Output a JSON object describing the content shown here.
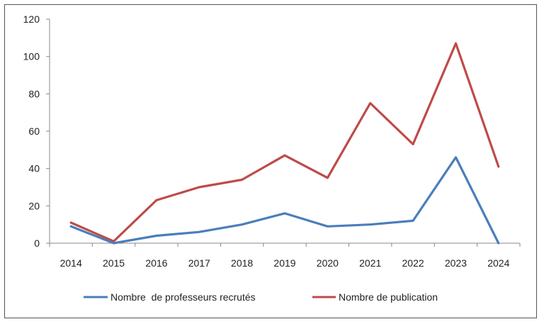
{
  "chart_data": {
    "type": "line",
    "categories": [
      "2014",
      "2015",
      "2016",
      "2017",
      "2018",
      "2019",
      "2020",
      "2021",
      "2022",
      "2023",
      "2024"
    ],
    "series": [
      {
        "name": "Nombre  de professeurs recrutés",
        "color": "#4a7ebb",
        "values": [
          9,
          0,
          4,
          6,
          10,
          16,
          9,
          10,
          12,
          46,
          0
        ]
      },
      {
        "name": "Nombre de publication",
        "color": "#be4b48",
        "values": [
          11,
          1,
          23,
          30,
          34,
          47,
          35,
          75,
          53,
          107,
          41
        ]
      }
    ],
    "ylim": [
      0,
      120
    ],
    "yticks": [
      "0",
      "20",
      "40",
      "60",
      "80",
      "100",
      "120"
    ],
    "grid": false,
    "legend_position": "bottom",
    "title": "",
    "xlabel": "",
    "ylabel": ""
  }
}
